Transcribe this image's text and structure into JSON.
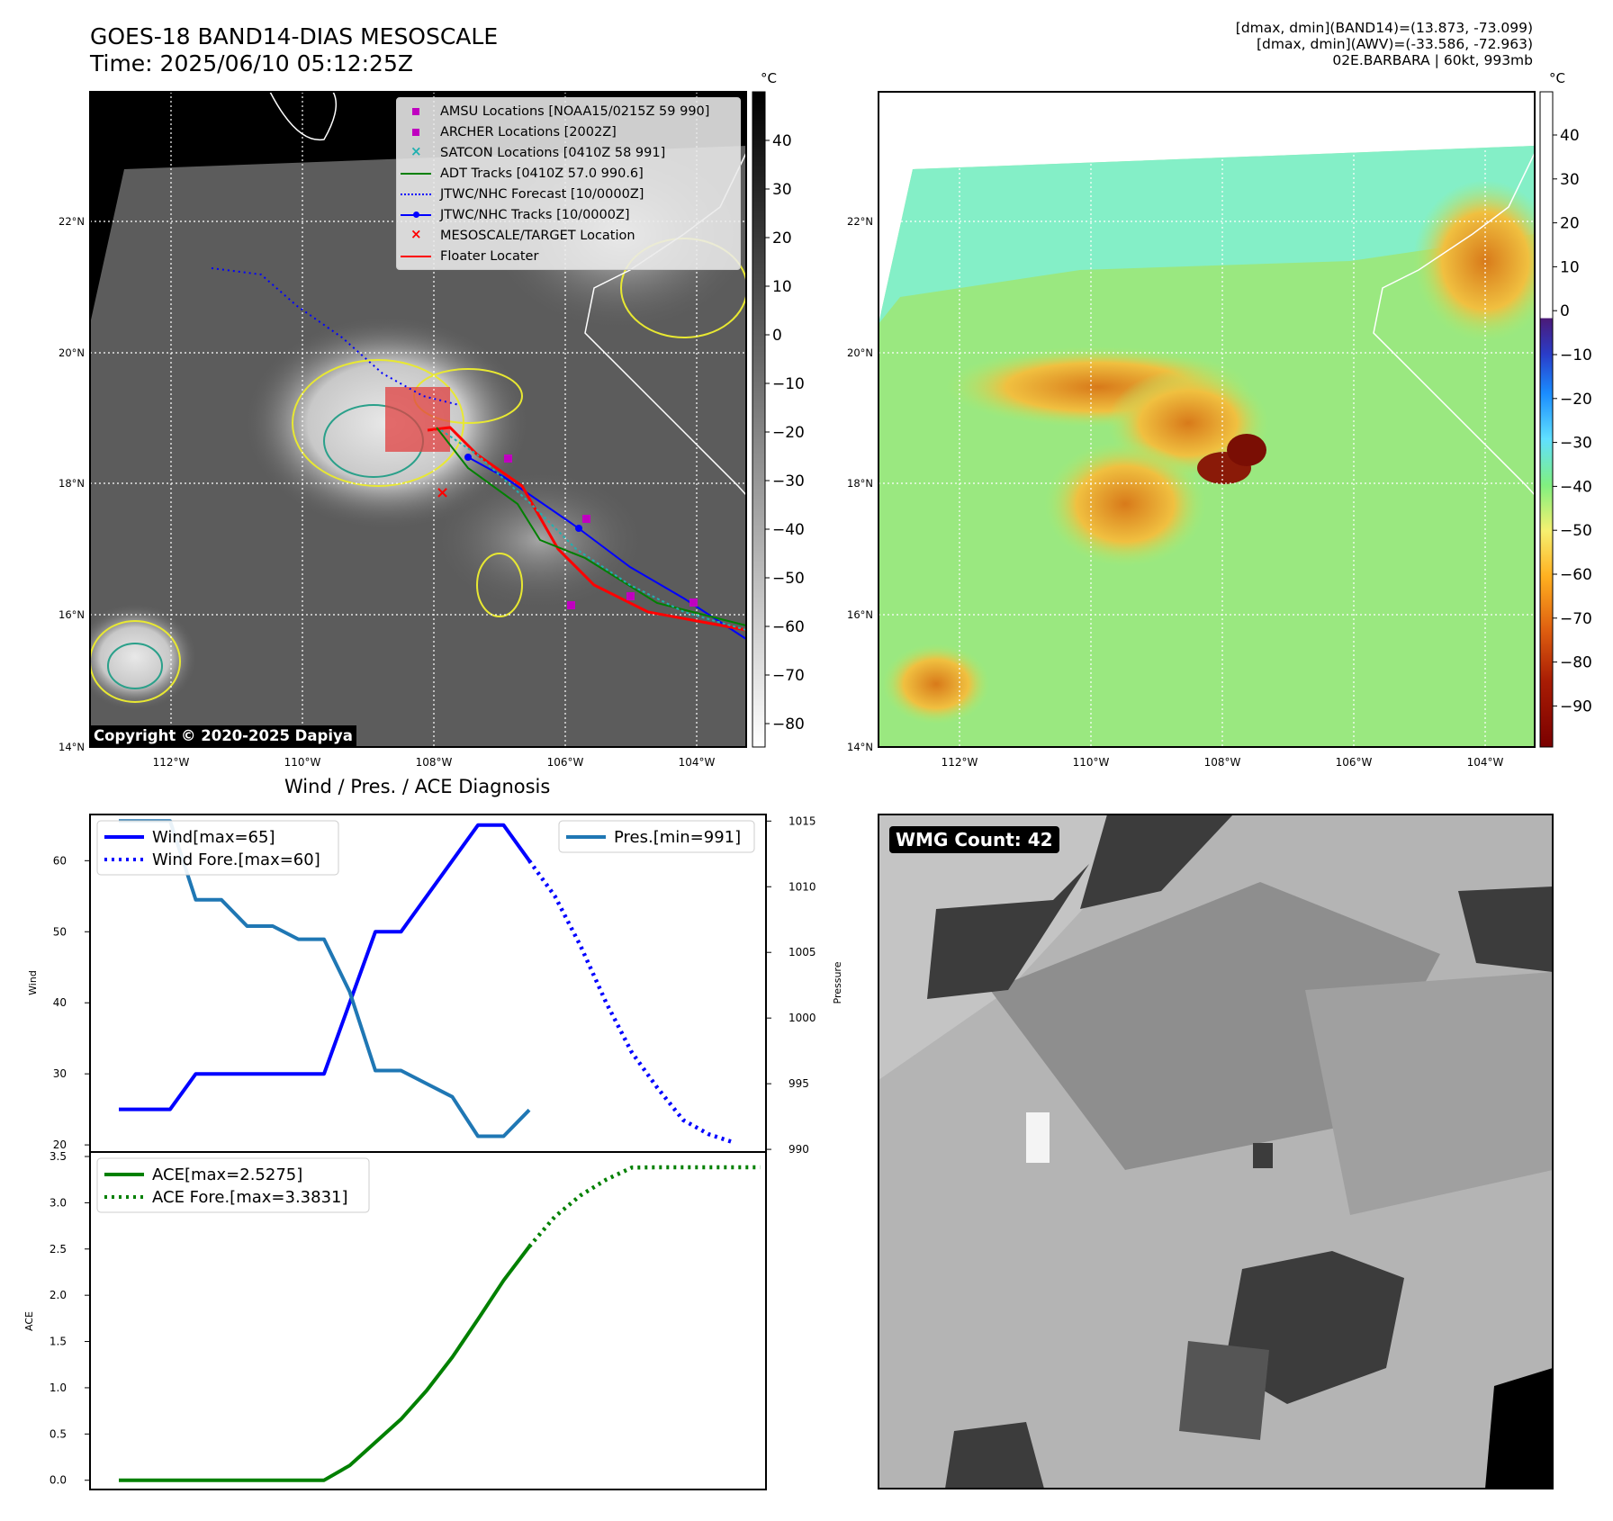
{
  "header": {
    "title_line1": "GOES-18 BAND14-DIAS MESOSCALE",
    "title_line2": "Time: 2025/06/10 05:12:25Z",
    "info_line1": "[dmax, dmin](BAND14)=(13.873, -73.099)",
    "info_line2": "[dmax, dmin](AWV)=(-33.586, -72.963)",
    "info_line3": "02E.BARBARA | 60kt, 993mb"
  },
  "map_axes": {
    "lat_labels": [
      "22°N",
      "20°N",
      "18°N",
      "16°N",
      "14°N"
    ],
    "lon_labels": [
      "112°W",
      "110°W",
      "108°W",
      "106°W",
      "104°W"
    ]
  },
  "ir_panel": {
    "legend": [
      {
        "label": "AMSU Locations [NOAA15/0215Z 59 990]",
        "color": "#c000c0",
        "marker": "square"
      },
      {
        "label": "ARCHER Locations [2002Z]",
        "color": "#c000c0",
        "marker": "square"
      },
      {
        "label": "SATCON Locations [0410Z 58 991]",
        "color": "#20b0b0",
        "marker": "x"
      },
      {
        "label": "ADT Tracks [0410Z 57.0 990.6]",
        "color": "#008000",
        "marker": "line"
      },
      {
        "label": "JTWC/NHC Forecast [10/0000Z]",
        "color": "#0000ff",
        "marker": "dotted"
      },
      {
        "label": "JTWC/NHC Tracks [10/0000Z]",
        "color": "#0000ff",
        "marker": "line-dot"
      },
      {
        "label": "MESOSCALE/TARGET Location",
        "color": "#ff0000",
        "marker": "x"
      },
      {
        "label": "Floater Locater",
        "color": "#ff0000",
        "marker": "line"
      }
    ],
    "copyright": "Copyright © 2020-2025 Dapiya",
    "colorbar_unit": "°C",
    "colorbar_ticks": [
      "40",
      "30",
      "20",
      "10",
      "0",
      "−10",
      "−20",
      "−30",
      "−40",
      "−50",
      "−60",
      "−70",
      "−80"
    ]
  },
  "wv_panel": {
    "colorbar_unit": "°C",
    "colorbar_ticks": [
      "40",
      "30",
      "20",
      "10",
      "0",
      "−10",
      "−20",
      "−30",
      "−40",
      "−50",
      "−60",
      "−70",
      "−80",
      "−90"
    ]
  },
  "diagnosis": {
    "title": "Wind / Pres. / ACE Diagnosis"
  },
  "wmg_panel": {
    "label": "WMG Count: 42"
  },
  "chart_data": [
    {
      "type": "line",
      "title": "Wind / Pres. / ACE Diagnosis",
      "ylabel": "Wind",
      "ylim": [
        19,
        66.5
      ],
      "yticks": [
        20,
        30,
        40,
        50,
        60
      ],
      "y2label": "Pressure",
      "y2lim": [
        989.8,
        1015.5
      ],
      "y2ticks": [
        990,
        995,
        1000,
        1005,
        1010,
        1015
      ],
      "x": [
        0,
        1,
        2,
        3,
        4,
        5,
        6,
        7,
        8,
        9,
        10,
        11,
        12,
        13,
        14,
        15,
        16,
        17,
        18,
        19,
        20,
        21,
        22,
        23,
        24,
        25
      ],
      "series": [
        {
          "name": "Wind[max=65]",
          "axis": "left",
          "color": "#0000ff",
          "style": "solid",
          "x": [
            0,
            1,
            2,
            3,
            4,
            5,
            6,
            7,
            8,
            9,
            10,
            11,
            12,
            13,
            14,
            15,
            16,
            17
          ],
          "values": [
            25,
            25,
            25,
            30,
            30,
            30,
            30,
            30,
            30,
            40,
            50,
            50,
            55,
            60,
            65,
            65,
            60,
            null
          ]
        },
        {
          "name": "Wind Fore.[max=60]",
          "axis": "left",
          "color": "#0000ff",
          "style": "dotted",
          "x": [
            16,
            17,
            18,
            19,
            20,
            21,
            22,
            23,
            24,
            25
          ],
          "values": [
            60,
            55,
            48,
            40,
            33,
            28,
            23.5,
            21.5,
            20.3,
            null
          ]
        },
        {
          "name": "Pres.[min=991]",
          "axis": "right",
          "color": "#1f77b4",
          "style": "solid",
          "x": [
            0,
            1,
            2,
            3,
            4,
            5,
            6,
            7,
            8,
            9,
            10,
            11,
            12,
            13,
            14,
            15,
            16
          ],
          "values": [
            1015,
            1015,
            1015,
            1009,
            1009,
            1007,
            1007,
            1006,
            1006,
            1002,
            996,
            996,
            995,
            994,
            991,
            991,
            993
          ]
        }
      ]
    },
    {
      "type": "line",
      "ylabel": "ACE",
      "ylim": [
        -0.1,
        3.5
      ],
      "yticks": [
        0.0,
        0.5,
        1.0,
        1.5,
        2.0,
        2.5,
        3.0,
        3.5
      ],
      "series": [
        {
          "name": "ACE[max=2.5275]",
          "color": "#008000",
          "style": "solid",
          "x": [
            0,
            1,
            2,
            3,
            4,
            5,
            6,
            7,
            8,
            9,
            10,
            11,
            12,
            13,
            14,
            15,
            16
          ],
          "values": [
            0,
            0,
            0,
            0,
            0,
            0,
            0,
            0,
            0,
            0.16,
            0.41,
            0.66,
            0.97,
            1.33,
            1.74,
            2.16,
            2.5275
          ]
        },
        {
          "name": "ACE Fore.[max=3.3831]",
          "color": "#008000",
          "style": "dotted",
          "x": [
            16,
            17,
            18,
            19,
            20,
            21,
            22,
            23,
            24,
            25
          ],
          "values": [
            2.5275,
            2.85,
            3.08,
            3.25,
            3.38,
            3.3831,
            3.3831,
            3.3831,
            3.3831,
            3.3831
          ]
        }
      ]
    }
  ]
}
